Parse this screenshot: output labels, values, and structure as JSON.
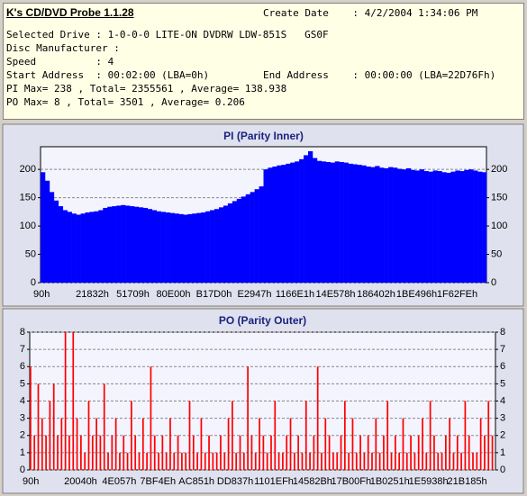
{
  "header": {
    "title": "K's CD/DVD Probe 1.1.28",
    "create_date": "Create Date    : 4/2/2004 1:34:06 PM",
    "lines": [
      "Selected Drive : 1-0-0-0 LITE-ON DVDRW LDW-851S   GS0F",
      "Disc Manufacturer :",
      "Speed          : 4",
      "Start Address  : 00:02:00 (LBA=0h)",
      "PI Max= 238 , Total= 2355561 , Average= 138.938",
      "PO Max= 8 , Total= 3501 , Average= 0.206"
    ],
    "end_address": "End Address    : 00:00:00 (LBA=22D76Fh)"
  },
  "chart_data": [
    {
      "type": "bar",
      "title": "PI (Parity Inner)",
      "color": "#0000ff",
      "grid": true,
      "ylim": [
        0,
        240
      ],
      "yticks": [
        0,
        50,
        100,
        150,
        200
      ],
      "xtick_labels": [
        "90h",
        "21832h",
        "51709h",
        "80E00h",
        "B17D0h",
        "E2947h",
        "1166E1h",
        "14E578h",
        "186402h",
        "1BE496h",
        "1F62FEh"
      ],
      "values": [
        195,
        180,
        160,
        145,
        135,
        128,
        125,
        122,
        120,
        122,
        124,
        125,
        126,
        128,
        132,
        134,
        135,
        136,
        137,
        136,
        135,
        134,
        133,
        132,
        130,
        128,
        126,
        125,
        124,
        123,
        122,
        121,
        120,
        121,
        122,
        123,
        124,
        126,
        128,
        130,
        133,
        136,
        140,
        144,
        148,
        152,
        156,
        160,
        165,
        170,
        200,
        203,
        205,
        207,
        208,
        210,
        212,
        214,
        218,
        225,
        232,
        220,
        215,
        214,
        213,
        212,
        214,
        213,
        212,
        210,
        209,
        208,
        207,
        205,
        204,
        206,
        203,
        202,
        204,
        203,
        201,
        200,
        202,
        199,
        198,
        200,
        197,
        196,
        198,
        197,
        195,
        194,
        196,
        198,
        197,
        199,
        200,
        198,
        196,
        195
      ]
    },
    {
      "type": "bar",
      "title": "PO (Parity Outer)",
      "color": "#ff0000",
      "grid": true,
      "ylim": [
        0,
        8
      ],
      "yticks": [
        0,
        1,
        2,
        3,
        4,
        5,
        6,
        7,
        8
      ],
      "xtick_labels": [
        "90h",
        "20040h",
        "4E057h",
        "7BF4Eh",
        "AC851h",
        "DD837h",
        "1101EFh",
        "14582Bh",
        "17B00Fh",
        "1B0251h",
        "1E5938h",
        "21B185h"
      ],
      "values": [
        6,
        2,
        5,
        3,
        2,
        4,
        5,
        2,
        3,
        8,
        2,
        8,
        3,
        2,
        1,
        4,
        2,
        3,
        2,
        5,
        1,
        2,
        3,
        1,
        2,
        1,
        4,
        2,
        1,
        3,
        1,
        6,
        2,
        1,
        2,
        1,
        3,
        1,
        2,
        1,
        1,
        4,
        2,
        1,
        3,
        1,
        2,
        1,
        1,
        2,
        1,
        3,
        4,
        1,
        2,
        1,
        6,
        2,
        1,
        3,
        2,
        1,
        2,
        4,
        1,
        1,
        2,
        3,
        1,
        2,
        1,
        4,
        1,
        2,
        6,
        1,
        3,
        2,
        1,
        1,
        2,
        4,
        1,
        3,
        1,
        2,
        1,
        2,
        1,
        3,
        1,
        2,
        4,
        1,
        2,
        1,
        3,
        1,
        2,
        1,
        2,
        3,
        1,
        4,
        2,
        1,
        1,
        2,
        3,
        1,
        2,
        1,
        4,
        2,
        1,
        1,
        3,
        2,
        4,
        2
      ]
    }
  ]
}
